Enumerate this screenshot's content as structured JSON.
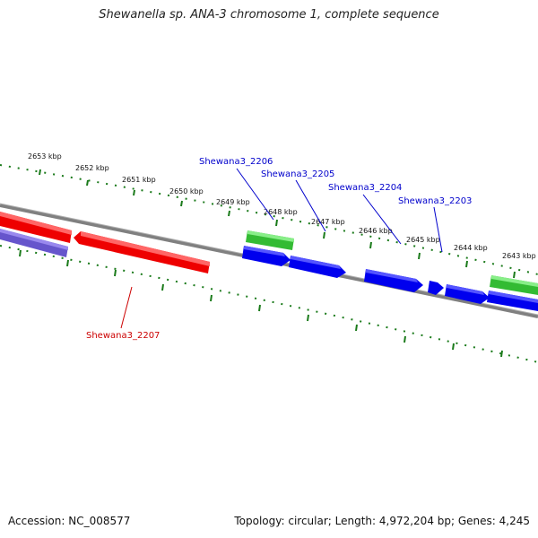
{
  "title": "Shewanella sp. ANA-3 chromosome 1, complete sequence",
  "footer": {
    "accession": "Accession: NC_008577",
    "summary": "Topology: circular; Length: 4,972,204 bp; Genes: 4,245"
  },
  "colors": {
    "backbone": "#808080",
    "ticks": "#1a7a1a",
    "forward_gene": "#0000ee",
    "reverse_gene": "#ee0000",
    "rna_gene": "#33bb33",
    "pseudo_gene": "#6655cc",
    "label_blue": "#0000cc",
    "label_red": "#cc0000"
  },
  "scale_labels": [
    "2653 kbp",
    "2652 kbp",
    "2651 kbp",
    "2650 kbp",
    "2649 kbp",
    "2648 kbp",
    "2647 kbp",
    "2646 kbp",
    "2645 kbp",
    "2644 kbp",
    "2643 kbp"
  ],
  "gene_labels": [
    {
      "id": "Shewana3_2206",
      "color": "blue"
    },
    {
      "id": "Shewana3_2205",
      "color": "blue"
    },
    {
      "id": "Shewana3_2204",
      "color": "blue"
    },
    {
      "id": "Shewana3_2203",
      "color": "blue"
    },
    {
      "id": "Shewana3_2207",
      "color": "red"
    }
  ]
}
